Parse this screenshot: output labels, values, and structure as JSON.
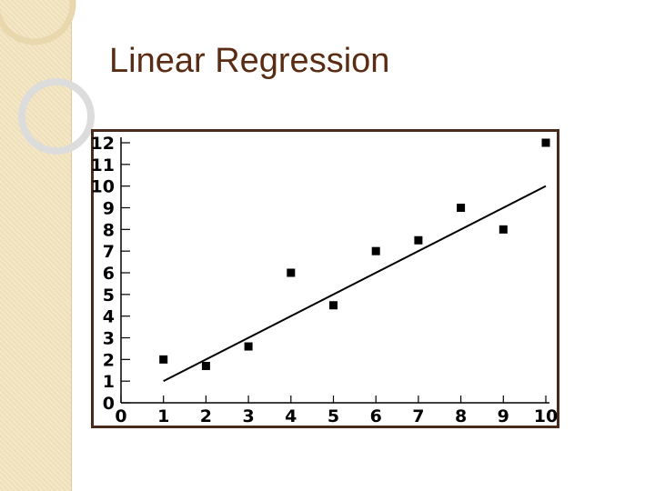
{
  "slide": {
    "title": "Linear Regression",
    "accent_color": "#5a2c14",
    "band_color": "#f3e3bd"
  },
  "chart_data": {
    "type": "scatter",
    "title": "",
    "xlabel": "",
    "ylabel": "",
    "xlim": [
      0,
      10
    ],
    "ylim": [
      0,
      12
    ],
    "x_ticks": [
      0,
      1,
      2,
      3,
      4,
      5,
      6,
      7,
      8,
      9,
      10
    ],
    "y_ticks": [
      0,
      1,
      2,
      3,
      4,
      5,
      6,
      7,
      8,
      9,
      10,
      11,
      12
    ],
    "grid": false,
    "points": [
      {
        "x": 1,
        "y": 2
      },
      {
        "x": 2,
        "y": 1.7
      },
      {
        "x": 3,
        "y": 2.6
      },
      {
        "x": 4,
        "y": 6
      },
      {
        "x": 5,
        "y": 4.5
      },
      {
        "x": 6,
        "y": 7
      },
      {
        "x": 7,
        "y": 7.5
      },
      {
        "x": 8,
        "y": 9
      },
      {
        "x": 9,
        "y": 8
      },
      {
        "x": 10,
        "y": 12
      }
    ],
    "trend_line": {
      "x": [
        1,
        10
      ],
      "y": [
        1,
        10
      ]
    },
    "marker_color": "#000000",
    "frame_color": "#4a2a1a"
  }
}
